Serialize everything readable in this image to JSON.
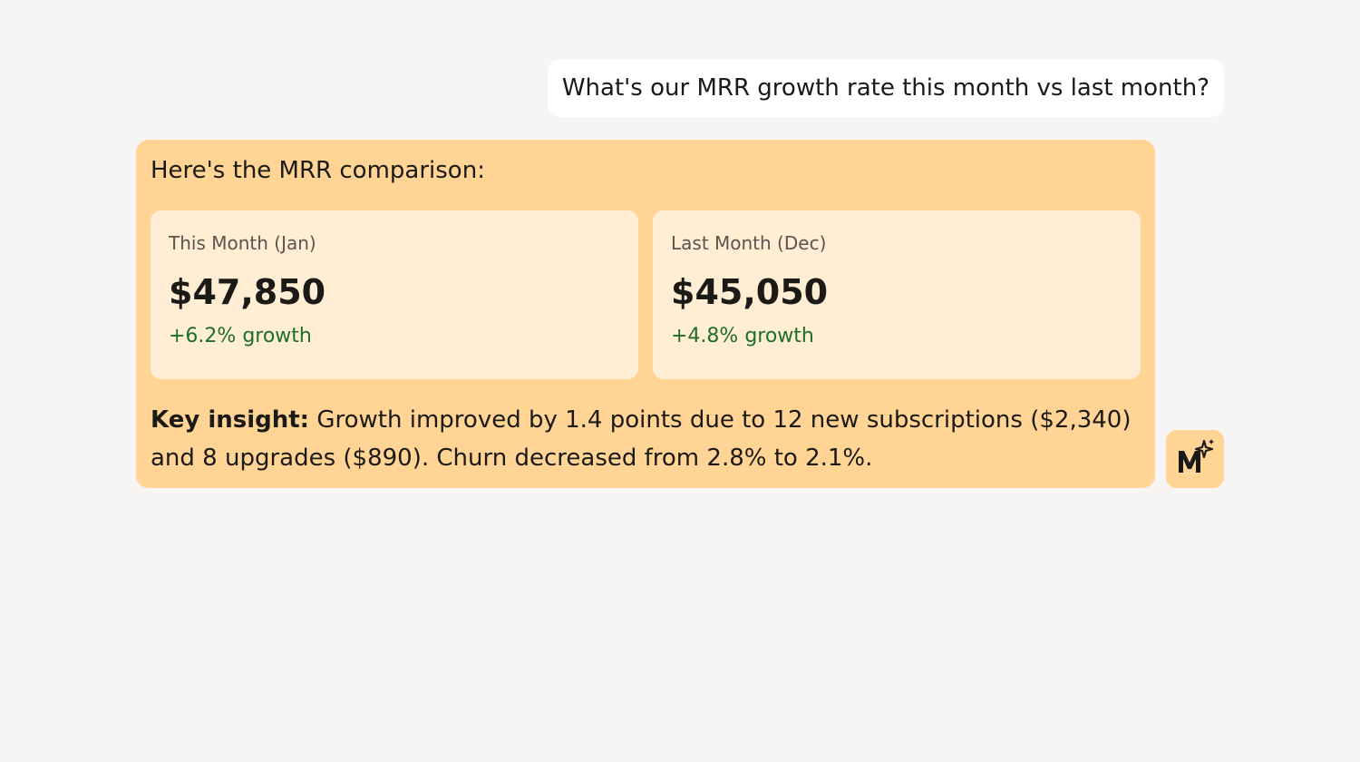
{
  "user_message": {
    "text": "What's our MRR growth rate this month vs last month?"
  },
  "assistant_message": {
    "intro": "Here's the MRR comparison:",
    "cards": [
      {
        "label": "This Month (Jan)",
        "value": "$47,850",
        "growth": "+6.2% growth"
      },
      {
        "label": "Last Month (Dec)",
        "value": "$45,050",
        "growth": "+4.8% growth"
      }
    ],
    "insight_label": "Key insight:",
    "insight_text": " Growth improved by 1.4 points due to 12 new subscriptions ($2,340) and 8 upgrades ($890). Churn decreased from 2.8% to 2.1%."
  },
  "assistant_avatar": {
    "icon": "m-sparkle-icon"
  },
  "colors": {
    "page_background": "#f7f5f3",
    "user_bubble": "#ffffff",
    "assistant_bubble": "#ffd494",
    "card_background": "#ffedd4",
    "growth_text": "#1e6e2a"
  }
}
